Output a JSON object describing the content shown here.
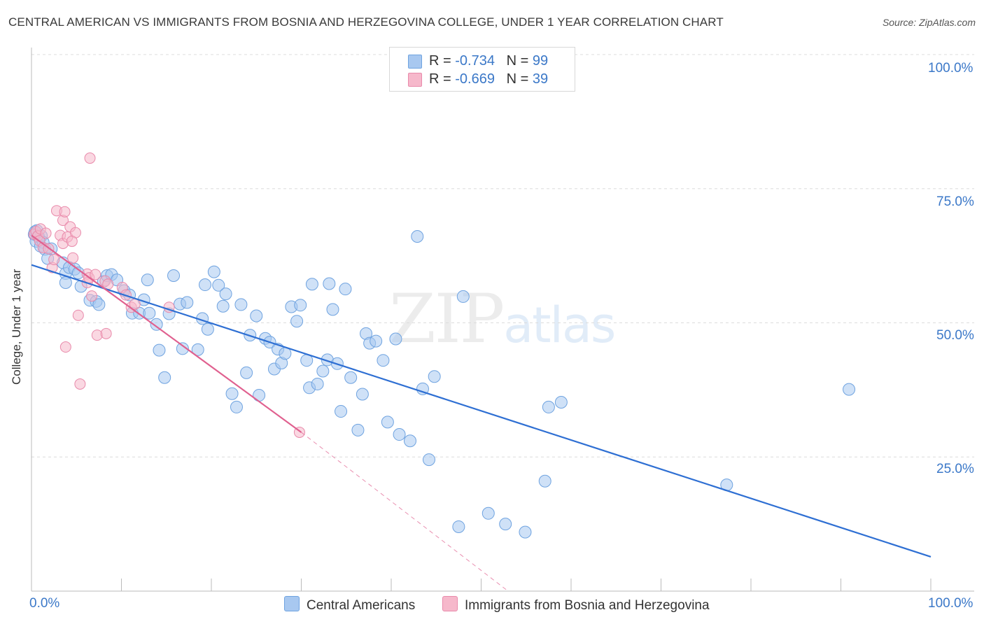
{
  "header": {
    "title": "CENTRAL AMERICAN VS IMMIGRANTS FROM BOSNIA AND HERZEGOVINA COLLEGE, UNDER 1 YEAR CORRELATION CHART",
    "source": "Source: ZipAtlas.com"
  },
  "watermark": {
    "zip": "ZIP",
    "atlas": "atlas"
  },
  "legend_top": {
    "rows": [
      {
        "r_label": "R = ",
        "r_value": "-0.734",
        "n_label": "N = ",
        "n_value": "99",
        "color": "#a8c8f0"
      },
      {
        "r_label": "R = ",
        "r_value": "-0.669",
        "n_label": "N = ",
        "n_value": "39",
        "color": "#f6b8cb"
      }
    ]
  },
  "legend_bottom": {
    "items": [
      {
        "label": "Central Americans",
        "color": "#a8c8f0"
      },
      {
        "label": "Immigrants from Bosnia and Herzegovina",
        "color": "#f6b8cb"
      }
    ]
  },
  "chart_data": {
    "type": "scatter",
    "title": "CENTRAL AMERICAN VS IMMIGRANTS FROM BOSNIA AND HERZEGOVINA COLLEGE, UNDER 1 YEAR CORRELATION CHART",
    "xlabel": "",
    "ylabel": "College, Under 1 year",
    "xlim": [
      0,
      100
    ],
    "ylim": [
      0,
      100
    ],
    "x_tick_labels": [
      "0.0%",
      "100.0%"
    ],
    "y_tick_labels": [
      "100.0%",
      "75.0%",
      "50.0%",
      "25.0%"
    ],
    "y_ticks": [
      100,
      75,
      50,
      25
    ],
    "grid": true,
    "legend_position": "top-center",
    "series": [
      {
        "name": "Central Americans",
        "color": "#6fa3e0",
        "fill": "#a8c8f0",
        "trend": {
          "x": [
            0,
            100
          ],
          "y": [
            60.8,
            6.4
          ],
          "color": "#2e6fd3"
        },
        "points": [
          [
            0.3,
            66.5
          ],
          [
            0.4,
            67
          ],
          [
            0.5,
            65.2
          ],
          [
            0.6,
            67.2
          ],
          [
            0.8,
            66
          ],
          [
            1,
            64.3
          ],
          [
            1.1,
            66.2
          ],
          [
            1.3,
            65
          ],
          [
            1.5,
            63.7
          ],
          [
            1.8,
            62
          ],
          [
            2.2,
            63.8
          ],
          [
            3.5,
            61.2
          ],
          [
            3.8,
            59.2
          ],
          [
            4.2,
            60.3
          ],
          [
            4.8,
            60
          ],
          [
            5.2,
            59.3
          ],
          [
            3.8,
            57.5
          ],
          [
            5.5,
            56.8
          ],
          [
            6.5,
            54.2
          ],
          [
            7.2,
            54
          ],
          [
            7.5,
            53.4
          ],
          [
            8,
            57.7
          ],
          [
            8.4,
            58.8
          ],
          [
            8.9,
            59
          ],
          [
            9.5,
            58
          ],
          [
            10.3,
            56
          ],
          [
            10.9,
            55.2
          ],
          [
            11.2,
            51.8
          ],
          [
            12,
            51.8
          ],
          [
            12.5,
            54.3
          ],
          [
            12.9,
            58
          ],
          [
            13.1,
            51.8
          ],
          [
            13.9,
            49.7
          ],
          [
            14.2,
            44.9
          ],
          [
            14.8,
            39.8
          ],
          [
            15.3,
            51.7
          ],
          [
            15.8,
            58.8
          ],
          [
            16.5,
            53.5
          ],
          [
            16.8,
            45.2
          ],
          [
            17.3,
            53.8
          ],
          [
            18.5,
            45
          ],
          [
            19,
            50.8
          ],
          [
            19.3,
            57.1
          ],
          [
            19.6,
            48.8
          ],
          [
            20.3,
            59.5
          ],
          [
            20.8,
            57
          ],
          [
            21.3,
            53.1
          ],
          [
            21.6,
            55.4
          ],
          [
            22.3,
            36.8
          ],
          [
            22.8,
            34.3
          ],
          [
            23.3,
            53.4
          ],
          [
            23.9,
            40.7
          ],
          [
            24.3,
            47.7
          ],
          [
            25,
            51.3
          ],
          [
            25.3,
            36.5
          ],
          [
            26,
            47.1
          ],
          [
            26.5,
            46.4
          ],
          [
            27,
            41.4
          ],
          [
            27.4,
            45.1
          ],
          [
            27.8,
            42.5
          ],
          [
            28.2,
            44.3
          ],
          [
            28.9,
            53
          ],
          [
            29.5,
            50.3
          ],
          [
            29.9,
            53.3
          ],
          [
            30.6,
            43
          ],
          [
            30.9,
            37.9
          ],
          [
            31.2,
            57.2
          ],
          [
            31.8,
            38.6
          ],
          [
            32.4,
            41
          ],
          [
            32.9,
            43.1
          ],
          [
            33.1,
            57.3
          ],
          [
            33.5,
            52.5
          ],
          [
            34,
            42.4
          ],
          [
            34.4,
            33.5
          ],
          [
            34.9,
            56.3
          ],
          [
            35.5,
            39.8
          ],
          [
            36.3,
            30
          ],
          [
            36.8,
            36.7
          ],
          [
            37.2,
            48
          ],
          [
            37.6,
            46.2
          ],
          [
            38.3,
            46.6
          ],
          [
            39.1,
            43
          ],
          [
            39.6,
            31.5
          ],
          [
            40.5,
            47
          ],
          [
            40.9,
            29.2
          ],
          [
            42.1,
            28
          ],
          [
            42.9,
            66.1
          ],
          [
            43.5,
            37.7
          ],
          [
            44.2,
            24.5
          ],
          [
            44.8,
            40
          ],
          [
            47.5,
            12
          ],
          [
            48,
            54.9
          ],
          [
            50.8,
            14.5
          ],
          [
            52.7,
            12.5
          ],
          [
            54.9,
            11
          ],
          [
            57.1,
            20.5
          ],
          [
            57.5,
            34.3
          ],
          [
            58.9,
            35.2
          ],
          [
            77.3,
            19.8
          ],
          [
            90.9,
            37.6
          ]
        ]
      },
      {
        "name": "Immigrants from Bosnia and Herzegovina",
        "color": "#e98aab",
        "fill": "#f6b8cb",
        "trend": {
          "x": [
            0,
            30
          ],
          "y": [
            66.3,
            29.6
          ],
          "color": "#e0608f",
          "dashed_extension": {
            "x": [
              30,
              53
            ],
            "y": [
              29.6,
              0
            ]
          }
        },
        "points": [
          [
            0.3,
            66.5
          ],
          [
            0.5,
            67
          ],
          [
            0.7,
            66.2
          ],
          [
            0.9,
            65.3
          ],
          [
            1,
            67.5
          ],
          [
            1.3,
            64
          ],
          [
            1.6,
            66.7
          ],
          [
            1.9,
            63.8
          ],
          [
            2.3,
            60.3
          ],
          [
            2.5,
            61.8
          ],
          [
            2.8,
            70.9
          ],
          [
            3.2,
            66.3
          ],
          [
            3.5,
            64.8
          ],
          [
            3.5,
            69.1
          ],
          [
            3.7,
            70.7
          ],
          [
            3.8,
            45.5
          ],
          [
            4,
            66
          ],
          [
            4.3,
            67.9
          ],
          [
            4.6,
            62.1
          ],
          [
            4.9,
            66.8
          ],
          [
            4.5,
            65.2
          ],
          [
            5.2,
            51.4
          ],
          [
            5.4,
            38.6
          ],
          [
            6.2,
            59.1
          ],
          [
            6.2,
            57.5
          ],
          [
            6.4,
            58.4
          ],
          [
            6.7,
            55
          ],
          [
            7.1,
            59
          ],
          [
            7.3,
            47.7
          ],
          [
            8.2,
            57.8
          ],
          [
            8.5,
            57.2
          ],
          [
            6.5,
            80.7
          ],
          [
            8.3,
            48
          ],
          [
            10.1,
            56.6
          ],
          [
            10.5,
            55.2
          ],
          [
            11.1,
            52.9
          ],
          [
            11.5,
            53.5
          ],
          [
            15.3,
            52.9
          ],
          [
            29.8,
            29.6
          ]
        ]
      }
    ]
  }
}
